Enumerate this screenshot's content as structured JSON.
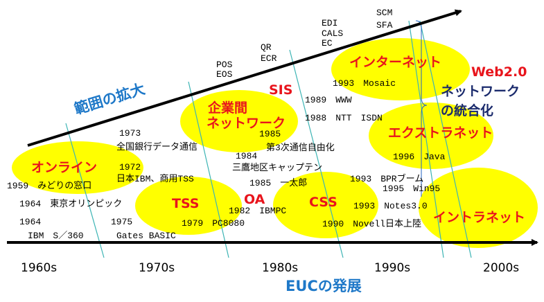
{
  "scope_label": "範囲の拡大",
  "axis_label": "EUCの発展",
  "decades": [
    "1960s",
    "1970s",
    "1980s",
    "1990s",
    "2000s"
  ],
  "eras": [
    "オンライン",
    "TSS",
    "OA",
    "企業間",
    "ネットワーク",
    "SIS",
    "CSS",
    "インターネット",
    "Web2.0",
    "エクストラネット",
    "イントラネット"
  ],
  "integration": [
    "ネットワーク",
    "の統合化"
  ],
  "events": [
    "1959　みどりの窓口",
    "1964　東京オリンピック",
    "1964",
    "IBM　S／360",
    "1973",
    "全国銀行データ通信",
    "1972",
    "日本IBM、商用TSS",
    "1975",
    "Gates BASIC",
    "1979　PC8080",
    "POS",
    "EOS",
    "QR",
    "ECR",
    "EDI",
    "CALS",
    "EC",
    "SCM",
    "SFA",
    "1985",
    "第3次通信自由化",
    "1984",
    "三鷹地区キャップテン",
    "1985　一太郎",
    "1982　IBMPC",
    "1989　WWW",
    "1988　NTT　ISDN",
    "1993　Mosaic",
    "1996　Java",
    "1993　BPRブーム",
    "1995　Win95",
    "1993　Notes3.0",
    "1990　Novell日本上陸"
  ]
}
